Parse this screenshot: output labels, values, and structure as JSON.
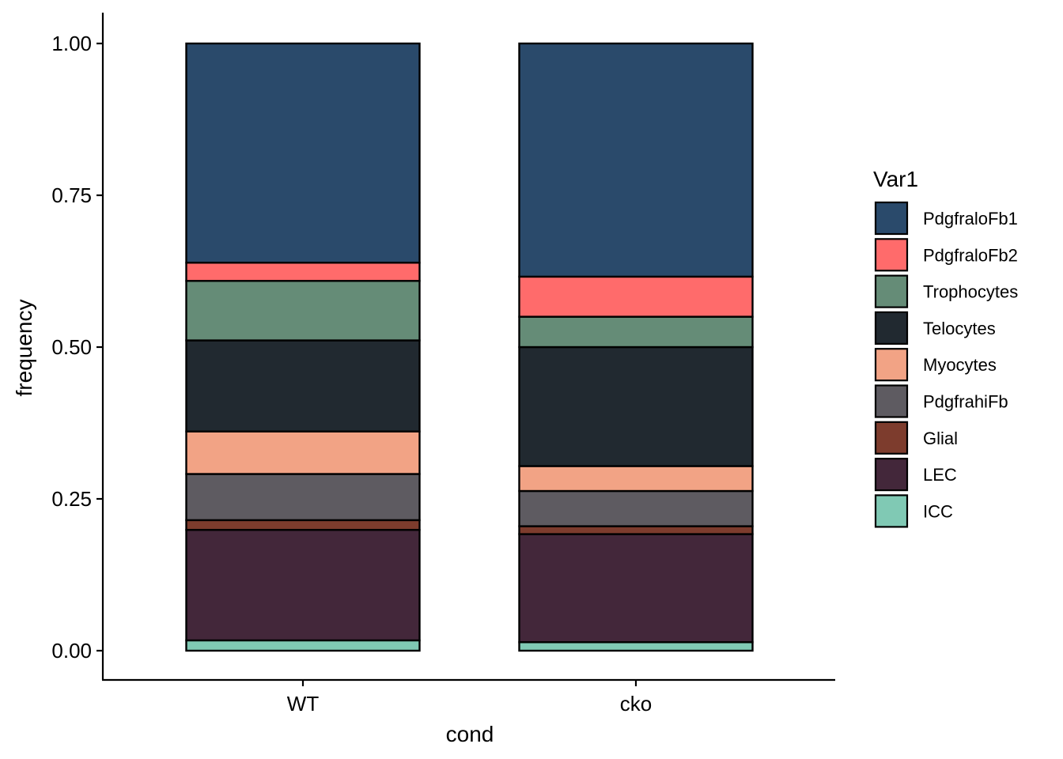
{
  "chart_data": {
    "type": "bar",
    "stacked": true,
    "categories": [
      "WT",
      "cko"
    ],
    "xlabel": "cond",
    "ylabel": "frequency",
    "ylim": [
      0,
      1
    ],
    "yticks": [
      "0.00",
      "0.25",
      "0.50",
      "0.75",
      "1.00"
    ],
    "ytick_values": [
      0,
      0.25,
      0.5,
      0.75,
      1.0
    ],
    "legend": {
      "title": "Var1",
      "position": "right"
    },
    "series": [
      {
        "name": "PdgfraloFb1",
        "color": "#2A4A6B",
        "values": [
          0.361,
          0.384
        ]
      },
      {
        "name": "PdgfraloFb2",
        "color": "#FF6B6B",
        "values": [
          0.03,
          0.066
        ]
      },
      {
        "name": "Trophocytes",
        "color": "#658C77",
        "values": [
          0.098,
          0.05
        ]
      },
      {
        "name": "Telocytes",
        "color": "#212930",
        "values": [
          0.15,
          0.196
        ]
      },
      {
        "name": "Myocytes",
        "color": "#F2A385",
        "values": [
          0.07,
          0.041
        ]
      },
      {
        "name": "PdgfrahiFb",
        "color": "#5E5B61",
        "values": [
          0.076,
          0.058
        ]
      },
      {
        "name": "Glial",
        "color": "#7D3C2D",
        "values": [
          0.016,
          0.013
        ]
      },
      {
        "name": "LEC",
        "color": "#43273A",
        "values": [
          0.182,
          0.178
        ]
      },
      {
        "name": "ICC",
        "color": "#80C9B4",
        "values": [
          0.017,
          0.014
        ]
      }
    ]
  }
}
